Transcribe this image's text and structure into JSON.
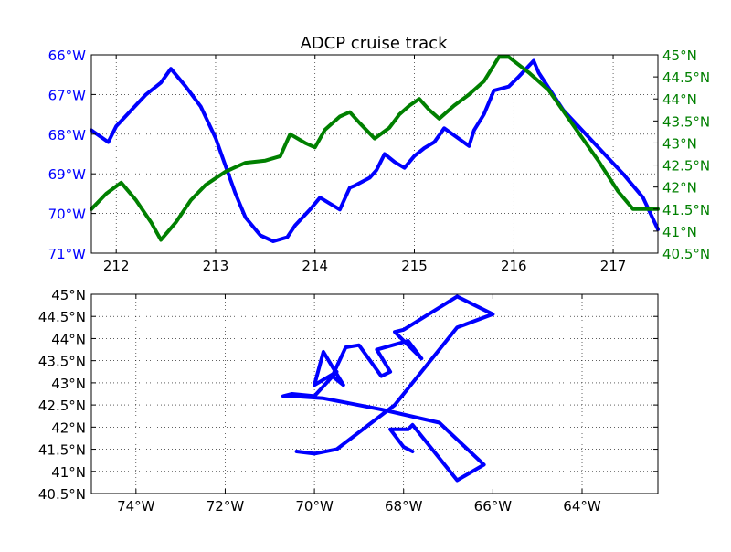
{
  "colors": {
    "longitude": "#0000ff",
    "latitude": "#008000",
    "track": "#0000ff",
    "tick_text": "#000000",
    "grid": "#000000"
  },
  "chart_data": [
    {
      "type": "line",
      "title": "ADCP cruise track",
      "xlabel": "",
      "ylabel": "",
      "grid": true,
      "xlim": [
        211.75,
        217.45
      ],
      "ylim_left": [
        -71,
        -66
      ],
      "ylim_right": [
        40.5,
        45
      ],
      "left_axis_inverted": true,
      "x_ticks": [
        {
          "value": 212,
          "label": "212"
        },
        {
          "value": 213,
          "label": "213"
        },
        {
          "value": 214,
          "label": "214"
        },
        {
          "value": 215,
          "label": "215"
        },
        {
          "value": 216,
          "label": "216"
        },
        {
          "value": 217,
          "label": "217"
        }
      ],
      "y_ticks_left": [
        {
          "value": -66,
          "label": "66°W"
        },
        {
          "value": -67,
          "label": "67°W"
        },
        {
          "value": -68,
          "label": "68°W"
        },
        {
          "value": -69,
          "label": "69°W"
        },
        {
          "value": -70,
          "label": "70°W"
        },
        {
          "value": -71,
          "label": "71°W"
        }
      ],
      "y_ticks_right": [
        {
          "value": 45,
          "label": "45°N"
        },
        {
          "value": 44.5,
          "label": "44.5°N"
        },
        {
          "value": 44,
          "label": "44°N"
        },
        {
          "value": 43.5,
          "label": "43.5°N"
        },
        {
          "value": 43,
          "label": "43°N"
        },
        {
          "value": 42.5,
          "label": "42.5°N"
        },
        {
          "value": 42,
          "label": "42°N"
        },
        {
          "value": 41.5,
          "label": "41.5°N"
        },
        {
          "value": 41,
          "label": "41°N"
        },
        {
          "value": 40.5,
          "label": "40.5°N"
        }
      ],
      "series": [
        {
          "axis": "left",
          "color": "#0000ff",
          "x": [
            211.75,
            211.92,
            212.0,
            212.15,
            212.3,
            212.45,
            212.55,
            212.7,
            212.85,
            213.0,
            213.1,
            213.2,
            213.3,
            213.45,
            213.58,
            213.72,
            213.8,
            213.95,
            214.05,
            214.15,
            214.25,
            214.35,
            214.4,
            214.55,
            214.62,
            214.7,
            214.8,
            214.9,
            215.0,
            215.1,
            215.2,
            215.3,
            215.55,
            215.6,
            215.7,
            215.8,
            215.95,
            216.05,
            216.2,
            216.25,
            216.5,
            216.8,
            217.1,
            217.3,
            217.45
          ],
          "y": [
            -67.9,
            -68.2,
            -67.8,
            -67.4,
            -67.0,
            -66.7,
            -66.35,
            -66.8,
            -67.3,
            -68.1,
            -68.8,
            -69.5,
            -70.1,
            -70.55,
            -70.7,
            -70.6,
            -70.3,
            -69.9,
            -69.6,
            -69.75,
            -69.9,
            -69.35,
            -69.3,
            -69.1,
            -68.9,
            -68.5,
            -68.7,
            -68.85,
            -68.55,
            -68.35,
            -68.2,
            -67.85,
            -68.3,
            -67.9,
            -67.5,
            -66.9,
            -66.8,
            -66.55,
            -66.15,
            -66.45,
            -67.4,
            -68.2,
            -69.0,
            -69.6,
            -70.4
          ]
        },
        {
          "axis": "right",
          "color": "#008000",
          "x": [
            211.75,
            211.9,
            212.05,
            212.2,
            212.35,
            212.45,
            212.6,
            212.75,
            212.9,
            213.1,
            213.3,
            213.5,
            213.65,
            213.75,
            213.9,
            214.0,
            214.1,
            214.25,
            214.35,
            214.45,
            214.6,
            214.75,
            214.85,
            214.95,
            215.05,
            215.15,
            215.25,
            215.4,
            215.55,
            215.7,
            215.85,
            215.95,
            216.15,
            216.35,
            216.6,
            216.85,
            217.05,
            217.2,
            217.3,
            217.45
          ],
          "y": [
            41.5,
            41.85,
            42.1,
            41.7,
            41.2,
            40.8,
            41.2,
            41.7,
            42.05,
            42.35,
            42.55,
            42.6,
            42.7,
            43.2,
            43.0,
            42.9,
            43.3,
            43.6,
            43.7,
            43.45,
            43.1,
            43.35,
            43.65,
            43.85,
            44.0,
            43.75,
            43.55,
            43.85,
            44.1,
            44.4,
            44.95,
            44.95,
            44.6,
            44.2,
            43.4,
            42.6,
            41.9,
            41.5,
            41.5,
            41.5
          ]
        }
      ]
    },
    {
      "type": "line",
      "title": "",
      "xlabel": "",
      "ylabel": "",
      "grid": true,
      "xlim": [
        -75,
        -62.3
      ],
      "ylim": [
        40.5,
        45
      ],
      "x_ticks": [
        {
          "value": -74,
          "label": "74°W"
        },
        {
          "value": -72,
          "label": "72°W"
        },
        {
          "value": -70,
          "label": "70°W"
        },
        {
          "value": -68,
          "label": "68°W"
        },
        {
          "value": -66,
          "label": "66°W"
        },
        {
          "value": -64,
          "label": "64°W"
        }
      ],
      "y_ticks": [
        {
          "value": 45,
          "label": "45°N"
        },
        {
          "value": 44.5,
          "label": "44.5°N"
        },
        {
          "value": 44,
          "label": "44°N"
        },
        {
          "value": 43.5,
          "label": "43.5°N"
        },
        {
          "value": 43,
          "label": "43°N"
        },
        {
          "value": 42.5,
          "label": "42.5°N"
        },
        {
          "value": 42,
          "label": "42°N"
        },
        {
          "value": 41.5,
          "label": "41.5°N"
        },
        {
          "value": 41,
          "label": "41°N"
        },
        {
          "value": 40.5,
          "label": "40.5°N"
        }
      ],
      "series": [
        {
          "color": "#0000ff",
          "x": [
            -70.4,
            -70.0,
            -69.5,
            -68.2,
            -66.8,
            -66.0,
            -66.8,
            -68.0,
            -68.2,
            -67.6,
            -67.9,
            -68.6,
            -68.3,
            -68.5,
            -69.0,
            -69.3,
            -69.6,
            -69.35,
            -69.8,
            -70.0,
            -69.5,
            -70.0,
            -70.5,
            -70.7,
            -70.5,
            -69.8,
            -68.5,
            -67.2,
            -66.2,
            -66.8,
            -67.8,
            -67.9,
            -68.3,
            -68.0,
            -67.8
          ],
          "y": [
            41.45,
            41.4,
            41.5,
            42.5,
            44.25,
            44.55,
            44.95,
            44.2,
            44.15,
            43.55,
            43.95,
            43.75,
            43.25,
            43.15,
            43.85,
            43.8,
            43.15,
            42.95,
            43.7,
            42.95,
            43.25,
            42.7,
            42.75,
            42.7,
            42.7,
            42.65,
            42.4,
            42.1,
            41.15,
            40.8,
            42.05,
            41.95,
            41.95,
            41.55,
            41.45
          ]
        }
      ]
    }
  ]
}
